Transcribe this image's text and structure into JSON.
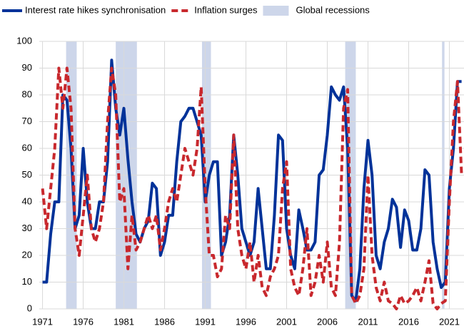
{
  "chart_data": {
    "type": "line",
    "x": [
      1971,
      1971.5,
      1972,
      1972.5,
      1973,
      1973.5,
      1974,
      1974.5,
      1975,
      1975.5,
      1976,
      1976.5,
      1977,
      1977.5,
      1978,
      1978.5,
      1979,
      1979.5,
      1980,
      1980.5,
      1981,
      1981.5,
      1982,
      1982.5,
      1983,
      1983.5,
      1984,
      1984.5,
      1985,
      1985.5,
      1986,
      1986.5,
      1987,
      1987.5,
      1988,
      1988.5,
      1989,
      1989.5,
      1990,
      1990.5,
      1991,
      1991.5,
      1992,
      1992.5,
      1993,
      1993.5,
      1994,
      1994.5,
      1995,
      1995.5,
      1996,
      1996.5,
      1997,
      1997.5,
      1998,
      1998.5,
      1999,
      1999.5,
      2000,
      2000.5,
      2001,
      2001.5,
      2002,
      2002.5,
      2003,
      2003.5,
      2004,
      2004.5,
      2005,
      2005.5,
      2006,
      2006.5,
      2007,
      2007.5,
      2008,
      2008.5,
      2009,
      2009.5,
      2010,
      2010.5,
      2011,
      2011.5,
      2012,
      2012.5,
      2013,
      2013.5,
      2014,
      2014.5,
      2015,
      2015.5,
      2016,
      2016.5,
      2017,
      2017.5,
      2018,
      2018.5,
      2019,
      2019.5,
      2020,
      2020.5,
      2021,
      2021.5,
      2022,
      2022.5
    ],
    "series": [
      {
        "name": "Interest rate hikes synchronisation",
        "color": "#003299",
        "dashed": false,
        "values": [
          10,
          10,
          28,
          40,
          40,
          80,
          78,
          60,
          30,
          35,
          60,
          40,
          30,
          30,
          40,
          40,
          55,
          93,
          75,
          65,
          75,
          56,
          40,
          28,
          25,
          30,
          33,
          47,
          45,
          20,
          25,
          35,
          35,
          55,
          70,
          72,
          75,
          75,
          70,
          65,
          40,
          50,
          55,
          55,
          20,
          25,
          35,
          65,
          50,
          30,
          25,
          20,
          25,
          45,
          30,
          15,
          15,
          35,
          65,
          63,
          30,
          20,
          15,
          37,
          30,
          22,
          22,
          25,
          50,
          52,
          65,
          83,
          80,
          78,
          83,
          60,
          5,
          3,
          15,
          45,
          63,
          50,
          20,
          15,
          25,
          30,
          41,
          38,
          23,
          37,
          33,
          22,
          22,
          30,
          52,
          50,
          25,
          15,
          8,
          10,
          45,
          60,
          85,
          85
        ]
      },
      {
        "name": "Inflation surges",
        "color": "#c8282d",
        "dashed": true,
        "values": [
          45,
          30,
          45,
          60,
          90,
          75,
          90,
          75,
          30,
          20,
          35,
          50,
          30,
          25,
          30,
          40,
          70,
          90,
          80,
          40,
          45,
          15,
          35,
          22,
          25,
          30,
          35,
          30,
          35,
          22,
          30,
          40,
          45,
          40,
          50,
          60,
          55,
          50,
          60,
          83,
          45,
          20,
          20,
          12,
          15,
          35,
          30,
          65,
          30,
          20,
          15,
          25,
          10,
          20,
          8,
          5,
          12,
          15,
          20,
          45,
          55,
          15,
          8,
          5,
          15,
          30,
          5,
          10,
          20,
          10,
          25,
          8,
          5,
          25,
          75,
          82,
          5,
          2,
          5,
          15,
          50,
          20,
          8,
          3,
          10,
          3,
          2,
          0,
          5,
          2,
          3,
          5,
          8,
          3,
          10,
          18,
          2,
          0,
          2,
          3,
          40,
          70,
          85,
          50
        ]
      }
    ],
    "shaded": {
      "name": "Global recessions",
      "color": "#cdd6ea",
      "ranges": [
        [
          1973.9,
          1975.2
        ],
        [
          1980,
          1982.6
        ],
        [
          1990.6,
          1991.7
        ],
        [
          2008.2,
          2009.5
        ],
        [
          2020.1,
          2020.4
        ]
      ]
    },
    "xlim": [
      1970.6,
      2022.8
    ],
    "xticks": [
      1971,
      1976,
      1981,
      1986,
      1991,
      1996,
      2001,
      2006,
      2011,
      2016,
      2021
    ],
    "ylim": [
      0,
      100
    ],
    "yticks": [
      0,
      10,
      20,
      30,
      40,
      50,
      60,
      70,
      80,
      90,
      100
    ],
    "grid": true
  }
}
